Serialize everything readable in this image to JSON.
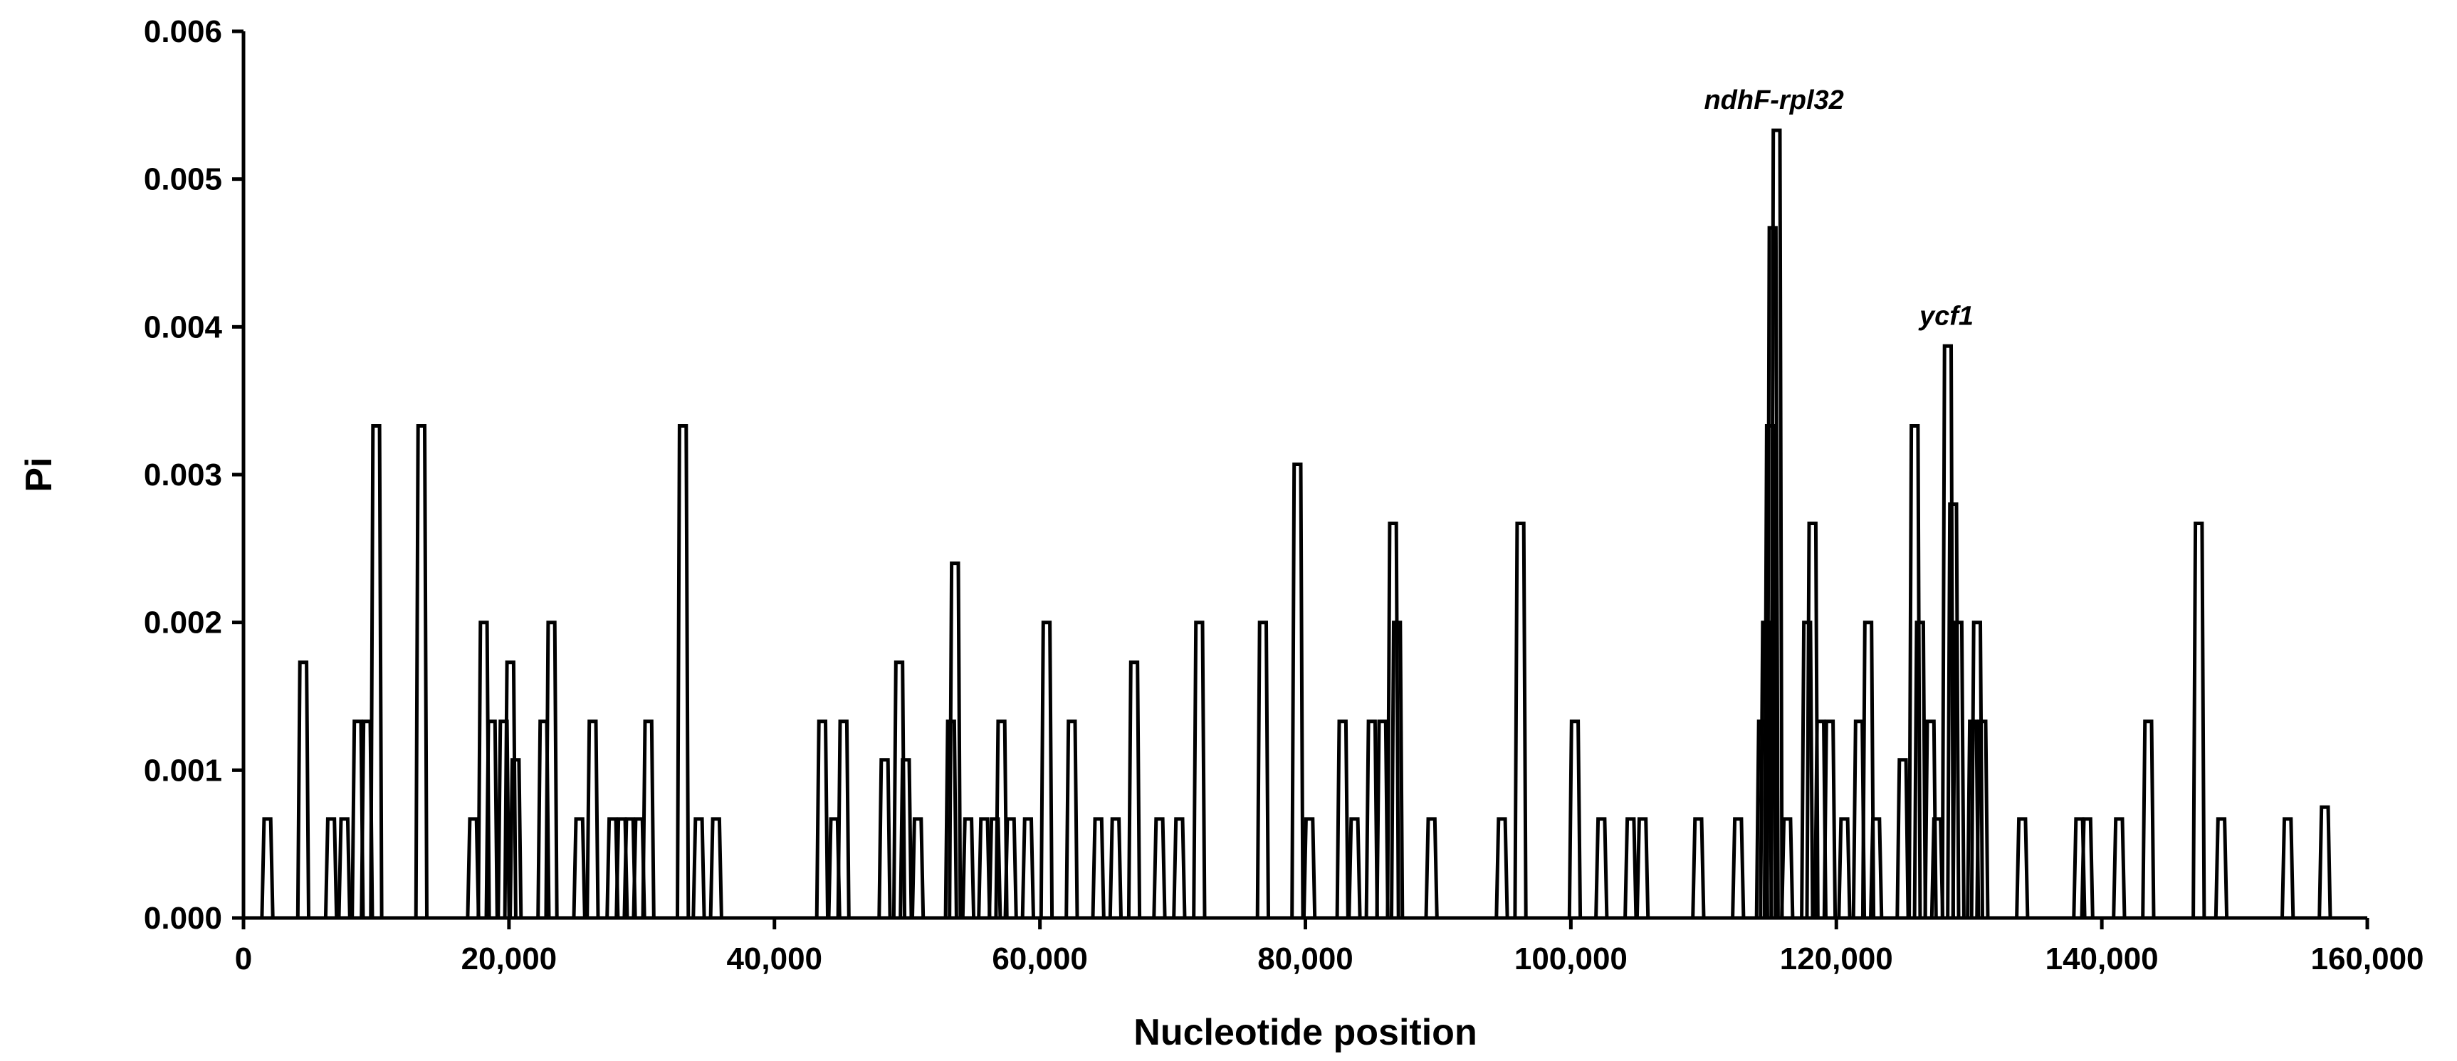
{
  "chart_data": {
    "type": "line",
    "xlabel": "Nucleotide position",
    "ylabel": "Pi",
    "xlim": [
      0,
      160000
    ],
    "ylim": [
      0,
      0.006
    ],
    "x_ticks": [
      0,
      20000,
      40000,
      60000,
      80000,
      100000,
      120000,
      140000,
      160000
    ],
    "x_tick_labels": [
      "0",
      "20,000",
      "40,000",
      "60,000",
      "80,000",
      "100,000",
      "120,000",
      "140,000",
      "160,000"
    ],
    "y_ticks": [
      0,
      0.001,
      0.002,
      0.003,
      0.004,
      0.005,
      0.006
    ],
    "y_tick_labels": [
      "0.000",
      "0.001",
      "0.002",
      "0.003",
      "0.004",
      "0.005",
      "0.006"
    ],
    "grid": false,
    "legend": "none",
    "line_color": "#000000",
    "annotations": [
      {
        "text": "ndhF-rpl32",
        "x": 115300,
        "y": 0.00533
      },
      {
        "text": "ycf1",
        "x": 128300,
        "y": 0.00387
      }
    ],
    "series": [
      {
        "peaks": [
          [
            1800,
            0.00067
          ],
          [
            4500,
            0.00173
          ],
          [
            6600,
            0.00067
          ],
          [
            7600,
            0.00067
          ],
          [
            8600,
            0.00133
          ],
          [
            9300,
            0.00133
          ],
          [
            10000,
            0.00333
          ],
          [
            13400,
            0.00333
          ],
          [
            17300,
            0.00067
          ],
          [
            18100,
            0.002
          ],
          [
            18700,
            0.00133
          ],
          [
            19600,
            0.00133
          ],
          [
            20100,
            0.00173
          ],
          [
            20500,
            0.00107
          ],
          [
            22600,
            0.00133
          ],
          [
            23200,
            0.002
          ],
          [
            25300,
            0.00067
          ],
          [
            26300,
            0.00133
          ],
          [
            27800,
            0.00067
          ],
          [
            28500,
            0.00067
          ],
          [
            29100,
            0.00067
          ],
          [
            29800,
            0.00067
          ],
          [
            30500,
            0.00133
          ],
          [
            33100,
            0.00333
          ],
          [
            34300,
            0.00067
          ],
          [
            35600,
            0.00067
          ],
          [
            43600,
            0.00133
          ],
          [
            44500,
            0.00067
          ],
          [
            45200,
            0.00133
          ],
          [
            48300,
            0.00107
          ],
          [
            49400,
            0.00173
          ],
          [
            49900,
            0.00107
          ],
          [
            50800,
            0.00067
          ],
          [
            53300,
            0.00133
          ],
          [
            53600,
            0.0024
          ],
          [
            54600,
            0.00067
          ],
          [
            55800,
            0.00067
          ],
          [
            56600,
            0.00067
          ],
          [
            57100,
            0.00133
          ],
          [
            57800,
            0.00067
          ],
          [
            59100,
            0.00067
          ],
          [
            60500,
            0.002
          ],
          [
            62400,
            0.00133
          ],
          [
            64400,
            0.00067
          ],
          [
            65700,
            0.00067
          ],
          [
            67100,
            0.00173
          ],
          [
            69000,
            0.00067
          ],
          [
            70500,
            0.00067
          ],
          [
            72000,
            0.002
          ],
          [
            76800,
            0.002
          ],
          [
            79400,
            0.00307
          ],
          [
            80300,
            0.00067
          ],
          [
            82800,
            0.00133
          ],
          [
            83700,
            0.00067
          ],
          [
            85000,
            0.00133
          ],
          [
            85800,
            0.00133
          ],
          [
            86600,
            0.00267
          ],
          [
            86900,
            0.002
          ],
          [
            89500,
            0.00067
          ],
          [
            94800,
            0.00067
          ],
          [
            96200,
            0.00267
          ],
          [
            100300,
            0.00133
          ],
          [
            102300,
            0.00067
          ],
          [
            104500,
            0.00067
          ],
          [
            105400,
            0.00067
          ],
          [
            109600,
            0.00067
          ],
          [
            112600,
            0.00067
          ],
          [
            114400,
            0.00133
          ],
          [
            114700,
            0.002
          ],
          [
            115000,
            0.00333
          ],
          [
            115200,
            0.00467
          ],
          [
            115500,
            0.00533
          ],
          [
            116300,
            0.00067
          ],
          [
            117800,
            0.002
          ],
          [
            118200,
            0.00267
          ],
          [
            118800,
            0.00133
          ],
          [
            119500,
            0.00133
          ],
          [
            120600,
            0.00067
          ],
          [
            121700,
            0.00133
          ],
          [
            122400,
            0.002
          ],
          [
            123000,
            0.00067
          ],
          [
            125000,
            0.00107
          ],
          [
            125900,
            0.00333
          ],
          [
            126300,
            0.002
          ],
          [
            127100,
            0.00133
          ],
          [
            127600,
            0.00067
          ],
          [
            128400,
            0.00387
          ],
          [
            128800,
            0.0028
          ],
          [
            129200,
            0.002
          ],
          [
            130300,
            0.00133
          ],
          [
            130600,
            0.002
          ],
          [
            131000,
            0.00133
          ],
          [
            134000,
            0.00067
          ],
          [
            138300,
            0.00067
          ],
          [
            138900,
            0.00067
          ],
          [
            141300,
            0.00067
          ],
          [
            143500,
            0.00133
          ],
          [
            147300,
            0.00267
          ],
          [
            149000,
            0.00067
          ],
          [
            154000,
            0.00067
          ],
          [
            156800,
            0.00075
          ]
        ]
      }
    ]
  }
}
